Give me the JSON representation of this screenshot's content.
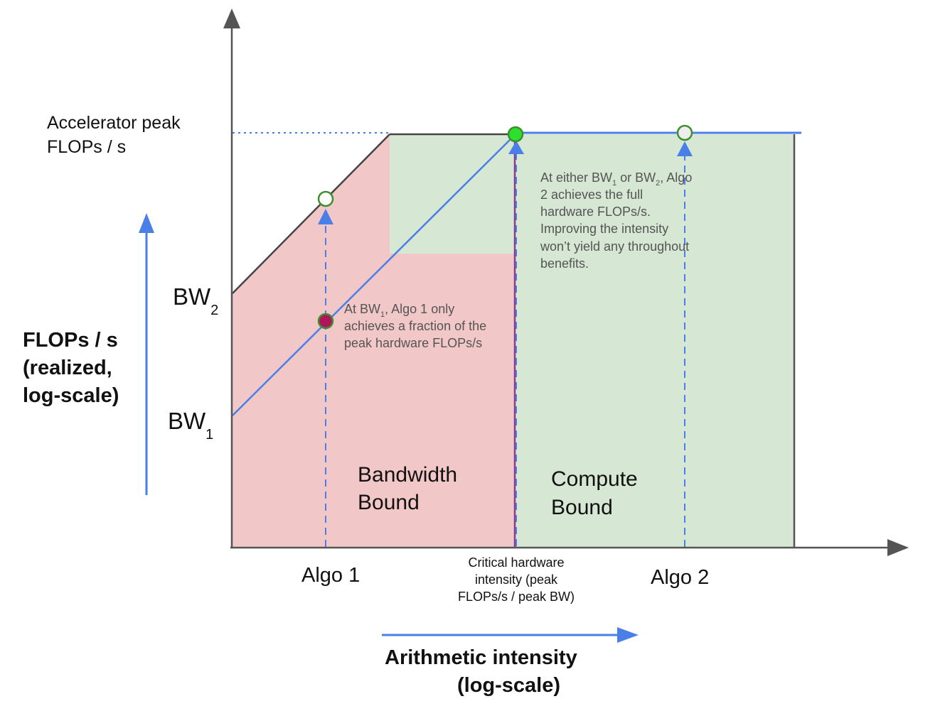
{
  "labels": {
    "peak_line1": "Accelerator peak",
    "peak_line2": "FLOPs / s",
    "bw2_main": "BW",
    "bw2_sub": "2",
    "bw1_main": "BW",
    "bw1_sub": "1",
    "y_axis_line1": "FLOPs / s",
    "y_axis_line2": "(realized,",
    "y_axis_line3": "log-scale)",
    "x_axis_line1": "Arithmetic intensity",
    "x_axis_line2": "(log-scale)",
    "algo1": "Algo 1",
    "algo2": "Algo 2",
    "critical_line1": "Critical hardware",
    "critical_line2": "intensity (peak",
    "critical_line3": "FLOPs/s / peak BW)",
    "bandwidth_line1": "Bandwidth",
    "bandwidth_line2": "Bound",
    "compute_line1": "Compute",
    "compute_line2": "Bound"
  },
  "annotations": {
    "algo1_a": "At BW",
    "algo1_sub": "1",
    "algo1_b": ", Algo 1 only",
    "algo1_line2": "achieves a fraction of the",
    "algo1_line3": "peak hardware FLOPs/s",
    "algo2_a": "At either BW",
    "algo2_sub1": "1",
    "algo2_b": " or BW",
    "algo2_sub2": "2",
    "algo2_c": ", Algo",
    "algo2_line2": "2 achieves the full",
    "algo2_line3": "hardware FLOPs/s.",
    "algo2_line4": "Improving the intensity",
    "algo2_line5": "won’t yield any throughout",
    "algo2_line6": "benefits."
  },
  "colors": {
    "bandwidth_region": "#f1c7c7",
    "compute_region": "#d6e8d3",
    "roofline_blue": "#4a7fe8",
    "axis": "#555555",
    "roof_bw2": "#444444",
    "critical_line": "#8a3b8a",
    "algo1_point": "#b0145a",
    "algo2_peak_point": "#2ee02e",
    "point_outline": "#3f8f2f"
  }
}
